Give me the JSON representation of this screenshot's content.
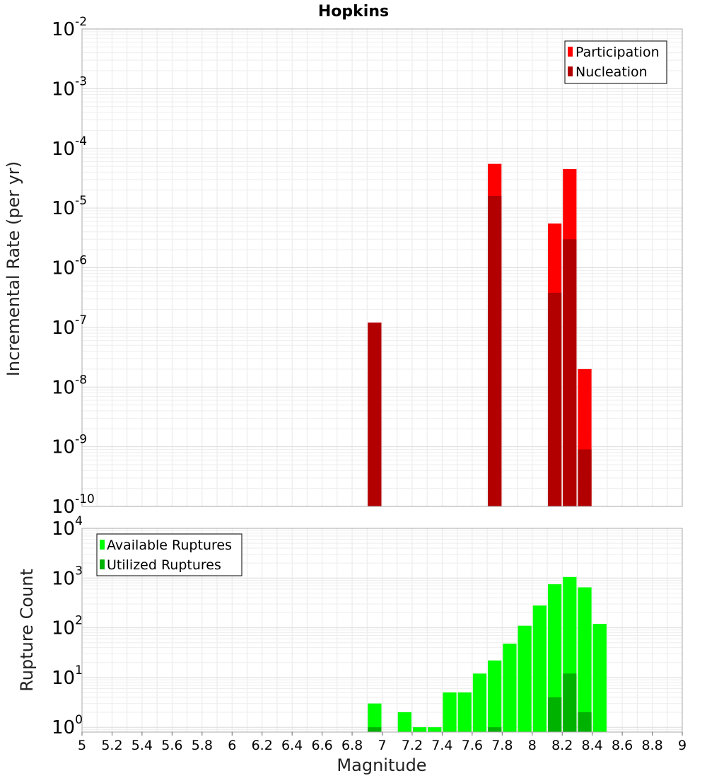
{
  "chart_data": [
    {
      "type": "bar",
      "title": "Hopkins",
      "xlabel": "",
      "ylabel": "Incremental Rate (per yr)",
      "xlim": [
        5,
        9
      ],
      "ylim": [
        1e-10,
        0.01
      ],
      "yscale": "log",
      "grid": true,
      "legend_position": "top-right",
      "bin_width": 0.1,
      "y_ticks": [
        {
          "base": "10",
          "exp": "-10"
        },
        {
          "base": "10",
          "exp": "-9"
        },
        {
          "base": "10",
          "exp": "-8"
        },
        {
          "base": "10",
          "exp": "-7"
        },
        {
          "base": "10",
          "exp": "-6"
        },
        {
          "base": "10",
          "exp": "-5"
        },
        {
          "base": "10",
          "exp": "-4"
        },
        {
          "base": "10",
          "exp": "-3"
        },
        {
          "base": "10",
          "exp": "-2"
        }
      ],
      "series": [
        {
          "name": "Participation",
          "color": "#ff0000",
          "x": [
            6.95,
            7.75,
            8.15,
            8.25,
            8.35
          ],
          "values": [
            1.2e-07,
            5.5e-05,
            5.5e-06,
            4.5e-05,
            2e-08
          ]
        },
        {
          "name": "Nucleation",
          "color": "#b20000",
          "x": [
            6.95,
            7.75,
            8.15,
            8.25,
            8.35
          ],
          "values": [
            1.2e-07,
            1.6e-05,
            3.8e-07,
            3e-06,
            9e-10
          ]
        }
      ]
    },
    {
      "type": "bar",
      "title": "",
      "xlabel": "Magnitude",
      "ylabel": "Rupture Count",
      "xlim": [
        5,
        9
      ],
      "ylim": [
        0.8,
        10000
      ],
      "yscale": "log",
      "grid": true,
      "legend_position": "top-left",
      "bin_width": 0.1,
      "x_ticks": [
        "5",
        "5.2",
        "5.4",
        "5.6",
        "5.8",
        "6",
        "6.2",
        "6.4",
        "6.6",
        "6.8",
        "7",
        "7.2",
        "7.4",
        "7.6",
        "7.8",
        "8",
        "8.2",
        "8.4",
        "8.6",
        "8.8",
        "9"
      ],
      "y_ticks": [
        {
          "base": "10",
          "exp": "0"
        },
        {
          "base": "10",
          "exp": "1"
        },
        {
          "base": "10",
          "exp": "2"
        },
        {
          "base": "10",
          "exp": "3"
        },
        {
          "base": "10",
          "exp": "4"
        }
      ],
      "series": [
        {
          "name": "Available Ruptures",
          "color": "#00ff00",
          "x": [
            6.95,
            7.15,
            7.25,
            7.35,
            7.45,
            7.55,
            7.65,
            7.75,
            7.85,
            7.95,
            8.05,
            8.15,
            8.25,
            8.35,
            8.45
          ],
          "values": [
            3,
            2,
            1,
            1,
            5,
            5,
            12,
            22,
            48,
            110,
            280,
            750,
            1050,
            650,
            120
          ]
        },
        {
          "name": "Utilized Ruptures",
          "color": "#00b200",
          "x": [
            6.95,
            7.75,
            8.15,
            8.25,
            8.35
          ],
          "values": [
            1,
            1,
            4,
            12,
            2
          ]
        }
      ]
    }
  ]
}
